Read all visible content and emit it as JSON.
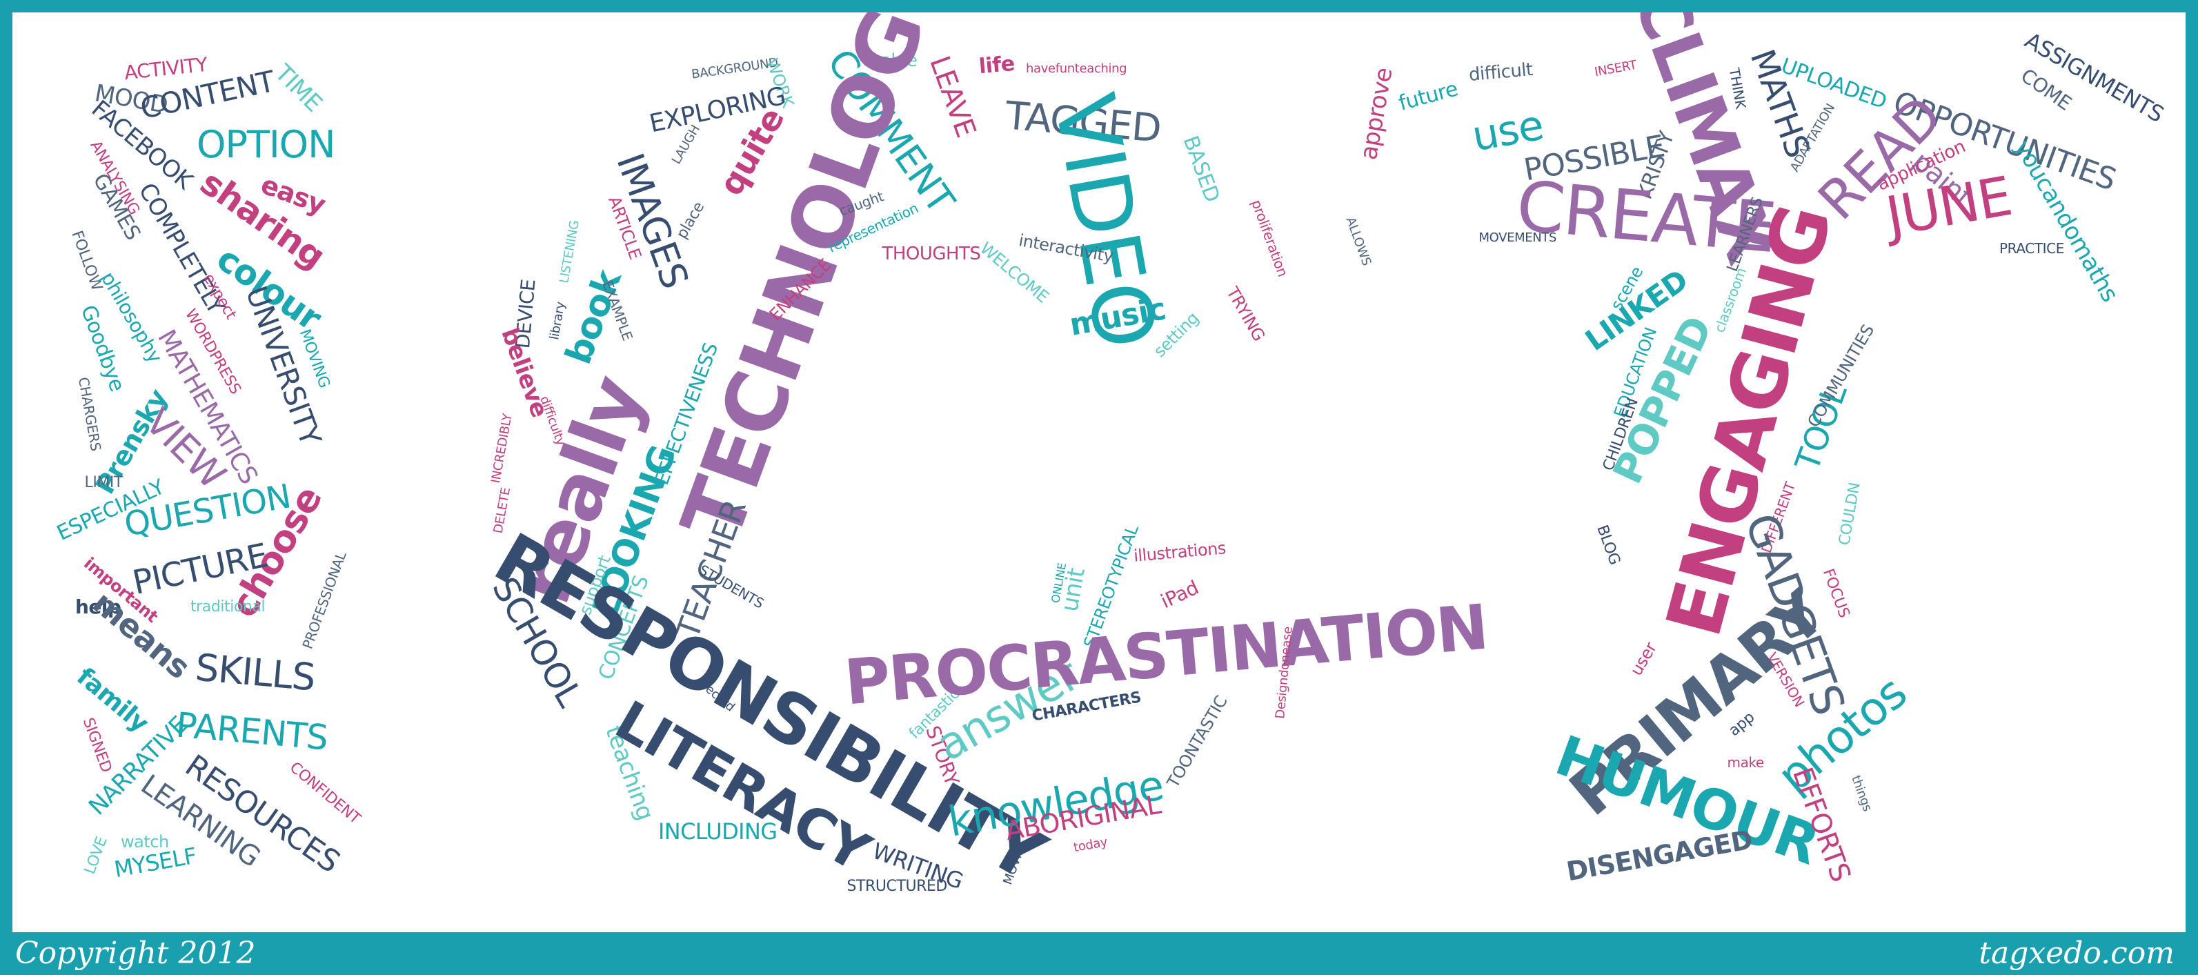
{
  "footer": {
    "copyright": "Copyright 2012",
    "site": "tagxedo.com"
  },
  "palette": {
    "teal": "#1aa7b0",
    "aqua": "#5fc9c4",
    "purple": "#8a4b8f",
    "violet": "#9a6aa8",
    "magenta": "#c2407f",
    "navy": "#364d70",
    "slate": "#52657f",
    "frame": "#1a9fae"
  },
  "words": [
    "ACTIVITY",
    "MOOD",
    "CONTENT",
    "TIME",
    "FACEBOOK",
    "OPTION",
    "ANALYSING",
    "easy",
    "GAMES",
    "sharing",
    "COMPLETELY",
    "FOLLOW",
    "colour",
    "philosophy",
    "expect",
    "Goodbye",
    "WORDPRESS",
    "UNIVERSITY",
    "MOVING",
    "MATHEMATICS",
    "CHARGERS",
    "Prensky",
    "VIEW",
    "LIMIT",
    "ESPECIALLY",
    "QUESTION",
    "choose",
    "PICTURE",
    "important",
    "PROFESSIONAL",
    "help",
    "traditional",
    "means",
    "SKILLS",
    "family",
    "PARENTS",
    "SIGNED",
    "NARRATIVE",
    "CONFIDENT",
    "RESOURCES",
    "LEARNING",
    "watch",
    "LOVE",
    "MYSELF",
    "BACKGROUND",
    "WORK",
    "value",
    "LEAVE",
    "life",
    "havefunteaching",
    "EXPLORING",
    "COMMENT",
    "TAGGED",
    "LAUGH",
    "quite",
    "TECHNOLOGY",
    "IMAGES",
    "VIDEO",
    "BASED",
    "caught",
    "ARTICLE",
    "place",
    "representation",
    "THOUGHTS",
    "proliferation",
    "LISTENING",
    "book",
    "interactivity",
    "ENHANCE",
    "WELCOME",
    "DEVICE",
    "EXAMPLE",
    "music",
    "setting",
    "TRYING",
    "library",
    "believe",
    "difficulty",
    "EFFECTIVENESS",
    "INCREDIBLY",
    "really",
    "DELETE",
    "LOOKING",
    "support",
    "TEACHER",
    "SCHOOL",
    "CONCEPTS",
    "STUDENTS",
    "RESPONSIBILITY",
    "record",
    "teaching",
    "LITERACY",
    "INCLUDING",
    "WRITING",
    "STRUCTURED",
    "MOVIE",
    "fantastic",
    "STORY",
    "answer",
    "CHARACTERS",
    "knowledge",
    "TOONTASTIC",
    "ABORIGINAL",
    "today",
    "unit",
    "STEREOTYPICAL",
    "illustrations",
    "iPad",
    "PROCRASTINATION",
    "Designdonease",
    "ONLINE",
    "approve",
    "future",
    "difficult",
    "INSERT",
    "THINK",
    "MATHS",
    "UPLOADED",
    "COME",
    "ASSIGNMENTS",
    "use",
    "CLIMAX",
    "ADAPTATION",
    "OPPORTUNITIES",
    "ALLOWS",
    "POSSIBLE",
    "KRISTY",
    "READ",
    "paint",
    "application",
    "CREATE",
    "JUNE",
    "youcandomaths",
    "MOVEMENTS",
    "LEARNERS",
    "PRACTICE",
    "scene",
    "LINKED",
    "classroom",
    "POPPED",
    "EDUCATION",
    "ENGAGING",
    "TOOL",
    "COMMUNITIES",
    "CHILDREN",
    "DIFFERENT",
    "COULDN",
    "BLOG",
    "GADGETS",
    "FOCUS",
    "user",
    "PRIMARY",
    "VERSION",
    "app",
    "photos",
    "make",
    "HUMOUR",
    "EFFORTS",
    "things",
    "DISENGAGED"
  ]
}
